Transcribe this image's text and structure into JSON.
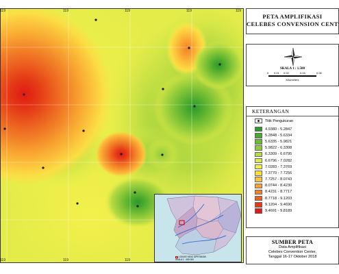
{
  "title": {
    "line1": "PETA  AMPLIFIKASI",
    "line2": "CELEBES CONVENSION CENTER"
  },
  "scale": {
    "label": "SKALA 1 : 1.500",
    "ticks": [
      "0",
      "0.01",
      "0.02",
      "0.04",
      "0.06"
    ],
    "unit": "Kilometers",
    "icon": "north-arrow-icon"
  },
  "coordinates": {
    "top": [
      "119",
      "119",
      "119",
      "119",
      "119"
    ],
    "bottom": [
      "119",
      "119",
      "119",
      "119",
      "119"
    ]
  },
  "legend": {
    "title": "KETERANGAN",
    "point_label": "Titik Pengukuran",
    "classes": [
      {
        "label": "4.9380 - 5.2847",
        "color": "#2b9a2a"
      },
      {
        "label": "5.2848 - 5.6334",
        "color": "#4aaa2e"
      },
      {
        "label": "5.6335 - 5.9821",
        "color": "#6dbb33"
      },
      {
        "label": "5.9822 - 6.3308",
        "color": "#92cb3a"
      },
      {
        "label": "6.3309 - 6.6795",
        "color": "#b8db41"
      },
      {
        "label": "6.6796 - 7.0282",
        "color": "#dcea48"
      },
      {
        "label": "7.0283 - 7.3769",
        "color": "#f3f04b"
      },
      {
        "label": "7.3770 - 7.7256",
        "color": "#fbde45"
      },
      {
        "label": "7.7257 - 8.0743",
        "color": "#fbc23b"
      },
      {
        "label": "8.0744 - 8.4230",
        "color": "#f8a331"
      },
      {
        "label": "8.4231 - 8.7717",
        "color": "#f28228"
      },
      {
        "label": "8.7718 - 9.1203",
        "color": "#ec5f1f"
      },
      {
        "label": "9.1204 - 9.4690",
        "color": "#e53a17"
      },
      {
        "label": "9.4691 - 9.8189",
        "color": "#e01a12"
      }
    ]
  },
  "source": {
    "title": "SUMBER PETA",
    "lines": [
      "Data Amplifikasi",
      "Celebes Convention Center,",
      "Tanggal 16-17 Oktober 2018"
    ]
  },
  "inset": {
    "legend_label": "LOKASI YANG DIPETAKAN",
    "scale_label": "SKALA 1 : 450.000"
  }
}
